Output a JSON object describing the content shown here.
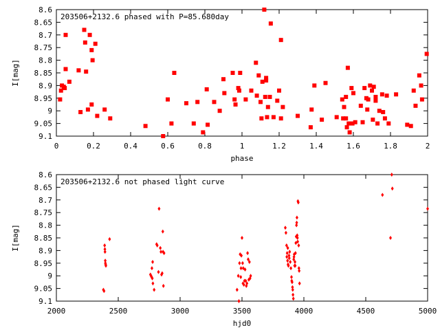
{
  "chart_data": [
    {
      "type": "scatter",
      "title": "203506+2132.6 phased with P=85.680day",
      "xlabel": "phase",
      "ylabel": "I[mag]",
      "xlim": [
        0,
        2
      ],
      "ylim": [
        8.6,
        9.1
      ],
      "y_inverted": true,
      "grid": false,
      "marker_color": "#ff0000",
      "x_ticks": [
        "0",
        "0.2",
        "0.4",
        "0.6",
        "0.8",
        "1",
        "1.2",
        "1.4",
        "1.6",
        "1.8",
        "2"
      ],
      "y_ticks": [
        "8.6",
        "8.65",
        "8.7",
        "8.75",
        "8.8",
        "8.85",
        "8.9",
        "8.95",
        "9",
        "9.05",
        "9.1"
      ],
      "points": [
        [
          0.02,
          8.955
        ],
        [
          0.025,
          8.92
        ],
        [
          0.03,
          8.9
        ],
        [
          0.04,
          8.905
        ],
        [
          0.045,
          8.91
        ],
        [
          0.05,
          8.7
        ],
        [
          0.05,
          8.835
        ],
        [
          0.07,
          8.885
        ],
        [
          0.12,
          8.84
        ],
        [
          0.13,
          9.005
        ],
        [
          0.15,
          8.68
        ],
        [
          0.155,
          8.73
        ],
        [
          0.16,
          8.845
        ],
        [
          0.17,
          8.995
        ],
        [
          0.18,
          8.7
        ],
        [
          0.19,
          8.975
        ],
        [
          0.19,
          8.76
        ],
        [
          0.195,
          8.8
        ],
        [
          0.21,
          8.735
        ],
        [
          0.22,
          9.02
        ],
        [
          0.26,
          8.995
        ],
        [
          0.29,
          9.03
        ],
        [
          0.48,
          9.06
        ],
        [
          0.575,
          9.1
        ],
        [
          0.6,
          8.955
        ],
        [
          0.62,
          9.05
        ],
        [
          0.635,
          8.85
        ],
        [
          0.7,
          8.97
        ],
        [
          0.74,
          9.05
        ],
        [
          0.76,
          8.965
        ],
        [
          0.79,
          9.085
        ],
        [
          0.81,
          8.915
        ],
        [
          0.815,
          9.055
        ],
        [
          0.85,
          8.965
        ],
        [
          0.88,
          9.0
        ],
        [
          0.9,
          8.875
        ],
        [
          0.905,
          8.93
        ],
        [
          0.95,
          8.85
        ],
        [
          0.96,
          8.955
        ],
        [
          0.965,
          8.975
        ],
        [
          0.98,
          8.91
        ],
        [
          0.985,
          8.92
        ],
        [
          0.99,
          8.85
        ],
        [
          1.02,
          8.955
        ],
        [
          1.05,
          8.92
        ],
        [
          1.075,
          8.81
        ],
        [
          1.08,
          8.94
        ],
        [
          1.09,
          8.86
        ],
        [
          1.1,
          8.965
        ],
        [
          1.105,
          9.03
        ],
        [
          1.11,
          8.885
        ],
        [
          1.12,
          8.6
        ],
        [
          1.125,
          8.945
        ],
        [
          1.13,
          8.88
        ],
        [
          1.13,
          8.87
        ],
        [
          1.135,
          9.025
        ],
        [
          1.14,
          8.985
        ],
        [
          1.15,
          8.945
        ],
        [
          1.155,
          8.655
        ],
        [
          1.17,
          9.025
        ],
        [
          1.19,
          8.96
        ],
        [
          1.2,
          8.92
        ],
        [
          1.21,
          8.72
        ],
        [
          1.21,
          9.03
        ],
        [
          1.22,
          8.985
        ],
        [
          1.3,
          9.02
        ],
        [
          1.37,
          9.065
        ],
        [
          1.375,
          8.995
        ],
        [
          1.39,
          8.9
        ],
        [
          1.43,
          9.035
        ],
        [
          1.45,
          8.89
        ],
        [
          1.51,
          9.025
        ],
        [
          1.54,
          8.955
        ],
        [
          1.545,
          9.03
        ],
        [
          1.55,
          8.985
        ],
        [
          1.56,
          9.03
        ],
        [
          1.56,
          8.945
        ],
        [
          1.565,
          9.065
        ],
        [
          1.57,
          8.83
        ],
        [
          1.575,
          9.05
        ],
        [
          1.58,
          9.085
        ],
        [
          1.59,
          8.91
        ],
        [
          1.595,
          9.05
        ],
        [
          1.6,
          8.93
        ],
        [
          1.61,
          9.045
        ],
        [
          1.64,
          8.98
        ],
        [
          1.65,
          9.045
        ],
        [
          1.66,
          8.91
        ],
        [
          1.67,
          8.95
        ],
        [
          1.675,
          8.995
        ],
        [
          1.68,
          8.955
        ],
        [
          1.69,
          8.9
        ],
        [
          1.7,
          8.92
        ],
        [
          1.705,
          9.035
        ],
        [
          1.71,
          8.905
        ],
        [
          1.72,
          8.945
        ],
        [
          1.72,
          8.96
        ],
        [
          1.73,
          9.05
        ],
        [
          1.74,
          9.0
        ],
        [
          1.755,
          8.935
        ],
        [
          1.76,
          9.005
        ],
        [
          1.77,
          9.03
        ],
        [
          1.78,
          8.94
        ],
        [
          1.79,
          9.05
        ],
        [
          1.83,
          8.935
        ],
        [
          1.89,
          9.055
        ],
        [
          1.91,
          9.06
        ],
        [
          1.925,
          8.92
        ],
        [
          1.935,
          8.98
        ],
        [
          1.955,
          8.86
        ],
        [
          1.965,
          8.9
        ],
        [
          1.97,
          8.955
        ],
        [
          1.995,
          8.775
        ]
      ]
    },
    {
      "type": "scatter",
      "title": "203506+2132.6 not phased light curve",
      "xlabel": "hjd0",
      "ylabel": "I[mag]",
      "xlim": [
        2000,
        5000
      ],
      "ylim": [
        8.6,
        9.1
      ],
      "y_inverted": true,
      "grid": false,
      "marker_color": "#ff0000",
      "x_ticks": [
        "2000",
        "2500",
        "3000",
        "3500",
        "4000",
        "4500",
        "5000"
      ],
      "y_ticks": [
        "8.6",
        "8.65",
        "8.7",
        "8.75",
        "8.8",
        "8.85",
        "8.9",
        "8.95",
        "9",
        "9.05",
        "9.1"
      ],
      "points": [
        [
          2380,
          9.055
        ],
        [
          2385,
          9.06
        ],
        [
          2390,
          8.88
        ],
        [
          2392,
          8.895
        ],
        [
          2393,
          8.905
        ],
        [
          2395,
          8.94
        ],
        [
          2396,
          8.95
        ],
        [
          2398,
          8.955
        ],
        [
          2400,
          8.96
        ],
        [
          2430,
          8.855
        ],
        [
          2760,
          8.995
        ],
        [
          2765,
          9.0
        ],
        [
          2770,
          9.005
        ],
        [
          2772,
          8.97
        ],
        [
          2775,
          9.01
        ],
        [
          2778,
          8.945
        ],
        [
          2780,
          9.03
        ],
        [
          2790,
          9.055
        ],
        [
          2810,
          8.875
        ],
        [
          2815,
          8.88
        ],
        [
          2825,
          8.985
        ],
        [
          2830,
          8.735
        ],
        [
          2840,
          8.89
        ],
        [
          2845,
          8.905
        ],
        [
          2850,
          8.995
        ],
        [
          2855,
          8.99
        ],
        [
          2860,
          8.825
        ],
        [
          2862,
          8.905
        ],
        [
          2865,
          9.04
        ],
        [
          2870,
          8.91
        ],
        [
          3460,
          9.055
        ],
        [
          3470,
          9.0
        ],
        [
          3475,
          9.1
        ],
        [
          3480,
          8.95
        ],
        [
          3485,
          8.915
        ],
        [
          3490,
          9.005
        ],
        [
          3492,
          8.97
        ],
        [
          3495,
          8.92
        ],
        [
          3500,
          8.85
        ],
        [
          3505,
          8.95
        ],
        [
          3508,
          9.03
        ],
        [
          3510,
          8.97
        ],
        [
          3515,
          9.035
        ],
        [
          3520,
          9.02
        ],
        [
          3525,
          8.975
        ],
        [
          3530,
          9.02
        ],
        [
          3535,
          9.04
        ],
        [
          3540,
          9.03
        ],
        [
          3545,
          8.91
        ],
        [
          3550,
          8.935
        ],
        [
          3555,
          9.015
        ],
        [
          3560,
          8.945
        ],
        [
          3565,
          9.01
        ],
        [
          3570,
          9.0
        ],
        [
          3850,
          8.81
        ],
        [
          3855,
          8.83
        ],
        [
          3860,
          8.88
        ],
        [
          3862,
          8.925
        ],
        [
          3865,
          8.91
        ],
        [
          3868,
          8.94
        ],
        [
          3870,
          8.89
        ],
        [
          3872,
          8.955
        ],
        [
          3875,
          8.96
        ],
        [
          3880,
          8.92
        ],
        [
          3882,
          8.93
        ],
        [
          3885,
          8.905
        ],
        [
          3890,
          8.945
        ],
        [
          3895,
          8.97
        ],
        [
          3900,
          9.005
        ],
        [
          3902,
          9.02
        ],
        [
          3905,
          9.025
        ],
        [
          3908,
          9.045
        ],
        [
          3910,
          9.055
        ],
        [
          3912,
          9.075
        ],
        [
          3915,
          9.09
        ],
        [
          3918,
          8.935
        ],
        [
          3920,
          8.925
        ],
        [
          3922,
          8.915
        ],
        [
          3925,
          8.96
        ],
        [
          3928,
          8.945
        ],
        [
          3930,
          8.96
        ],
        [
          3932,
          8.91
        ],
        [
          3935,
          8.87
        ],
        [
          3938,
          8.845
        ],
        [
          3940,
          8.8
        ],
        [
          3942,
          8.79
        ],
        [
          3944,
          8.77
        ],
        [
          3946,
          8.84
        ],
        [
          3948,
          8.85
        ],
        [
          3950,
          8.865
        ],
        [
          3952,
          8.705
        ],
        [
          3955,
          8.71
        ],
        [
          3958,
          8.88
        ],
        [
          3960,
          8.97
        ],
        [
          3962,
          8.98
        ],
        [
          3965,
          9.03
        ],
        [
          4635,
          8.68
        ],
        [
          4700,
          8.85
        ],
        [
          4710,
          8.6
        ],
        [
          4715,
          8.655
        ],
        [
          5000,
          8.735
        ]
      ]
    }
  ]
}
